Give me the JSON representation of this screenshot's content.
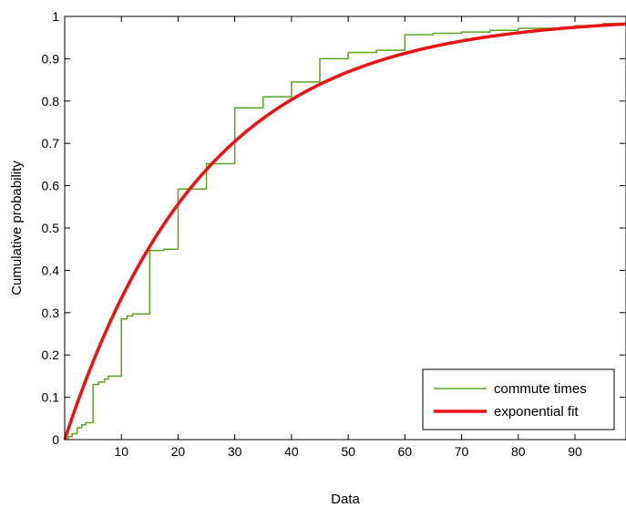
{
  "chart_data": {
    "type": "line",
    "title": "",
    "xlabel": "Data",
    "ylabel": "Cumulative probability",
    "xlim": [
      0,
      99
    ],
    "ylim": [
      0,
      1
    ],
    "xticks": [
      10,
      20,
      30,
      40,
      50,
      60,
      70,
      80,
      90
    ],
    "yticks": [
      0,
      0.1,
      0.2,
      0.3,
      0.4,
      0.5,
      0.6,
      0.7,
      0.8,
      0.9,
      1
    ],
    "ytick_labels": [
      "0",
      "0.1",
      "0.2",
      "0.3",
      "0.4",
      "0.5",
      "0.6",
      "0.7",
      "0.8",
      "0.9",
      "1"
    ],
    "grid": false,
    "legend_position": "bottom-right",
    "series": [
      {
        "name": "commute times",
        "style": "step",
        "color": "#5aa51e",
        "points": [
          [
            0.6,
            0
          ],
          [
            0.6,
            0.007
          ],
          [
            1.3,
            0.007
          ],
          [
            1.3,
            0.014
          ],
          [
            2.2,
            0.014
          ],
          [
            2.2,
            0.028
          ],
          [
            3.0,
            0.028
          ],
          [
            3.0,
            0.035
          ],
          [
            3.7,
            0.035
          ],
          [
            3.7,
            0.04
          ],
          [
            5.0,
            0.04
          ],
          [
            5.0,
            0.13
          ],
          [
            6.0,
            0.13
          ],
          [
            6.0,
            0.136
          ],
          [
            7.0,
            0.136
          ],
          [
            7.0,
            0.143
          ],
          [
            7.7,
            0.143
          ],
          [
            7.7,
            0.15
          ],
          [
            10.0,
            0.15
          ],
          [
            10.0,
            0.285
          ],
          [
            11.0,
            0.285
          ],
          [
            11.0,
            0.292
          ],
          [
            12.0,
            0.292
          ],
          [
            12.0,
            0.297
          ],
          [
            15.0,
            0.297
          ],
          [
            15.0,
            0.447
          ],
          [
            17.5,
            0.447
          ],
          [
            17.5,
            0.45
          ],
          [
            20.0,
            0.45
          ],
          [
            20.0,
            0.592
          ],
          [
            25.0,
            0.592
          ],
          [
            25.0,
            0.652
          ],
          [
            30.0,
            0.652
          ],
          [
            30.0,
            0.784
          ],
          [
            35.0,
            0.784
          ],
          [
            35.0,
            0.81
          ],
          [
            40.0,
            0.81
          ],
          [
            40.0,
            0.845
          ],
          [
            45.0,
            0.845
          ],
          [
            45.0,
            0.9
          ],
          [
            50.0,
            0.9
          ],
          [
            50.0,
            0.915
          ],
          [
            55.0,
            0.915
          ],
          [
            55.0,
            0.92
          ],
          [
            60.0,
            0.92
          ],
          [
            60.0,
            0.957
          ],
          [
            65.0,
            0.957
          ],
          [
            65.0,
            0.96
          ],
          [
            70.0,
            0.96
          ],
          [
            70.0,
            0.963
          ],
          [
            75.0,
            0.963
          ],
          [
            75.0,
            0.967
          ],
          [
            80.0,
            0.967
          ],
          [
            80.0,
            0.972
          ],
          [
            90.0,
            0.972
          ],
          [
            90.0,
            0.978
          ],
          [
            95.0,
            0.978
          ],
          [
            95.0,
            0.983
          ],
          [
            99.0,
            0.983
          ]
        ]
      },
      {
        "name": "exponential fit",
        "style": "curve",
        "color": "#ee1111",
        "function": "1 - exp(-x / 24.6)",
        "x_range": [
          0,
          99
        ]
      }
    ]
  }
}
